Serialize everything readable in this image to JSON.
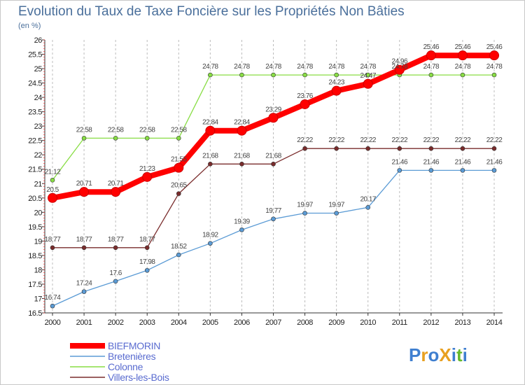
{
  "chart_data": {
    "type": "line",
    "title": "Evolution du Taux de Taxe Foncière sur les Propriétés Non Bâties",
    "subtitle": "(en %)",
    "xlabel": "",
    "ylabel": "",
    "x": [
      "2000",
      "2001",
      "2002",
      "2003",
      "2004",
      "2005",
      "2006",
      "2007",
      "2008",
      "2009",
      "2010",
      "2011",
      "2012",
      "2013",
      "2014"
    ],
    "ylim": [
      16.5,
      26
    ],
    "yticks": [
      "16.5",
      "17",
      "17.5",
      "18",
      "18.5",
      "19",
      "19.5",
      "20",
      "20.5",
      "21",
      "21.5",
      "22",
      "22.5",
      "23",
      "23.5",
      "24",
      "24.5",
      "25",
      "25.5",
      "26"
    ],
    "grid": "vertical dashed",
    "legend": "bottom-left",
    "series": [
      {
        "name": "BIEFMORIN",
        "color": "#ff0000",
        "values": [
          20.5,
          20.71,
          20.71,
          21.23,
          21.55,
          22.84,
          22.84,
          23.29,
          23.76,
          24.23,
          24.47,
          24.96,
          25.46,
          25.46,
          25.46
        ],
        "labels": [
          "20.5",
          "20.71",
          "20.71",
          "21.23",
          "21.55",
          "22.84",
          "22.84",
          "23.29",
          "23.76",
          "24.23",
          "24.47",
          "24.96",
          "25.46",
          "25.46",
          "25.46"
        ]
      },
      {
        "name": "Bretenières",
        "color": "#5b9bd5",
        "values": [
          16.74,
          17.24,
          17.6,
          17.98,
          18.52,
          18.92,
          19.39,
          19.77,
          19.97,
          19.97,
          20.17,
          21.46,
          21.46,
          21.46,
          21.46
        ],
        "labels": [
          "16.74",
          "17.24",
          "17.6",
          "17.98",
          "18.52",
          "18.92",
          "19.39",
          "19.77",
          "19.97",
          "19.97",
          "20.17",
          "21.46",
          "21.46",
          "21.46",
          "21.46"
        ]
      },
      {
        "name": "Colonne",
        "color": "#88dd44",
        "values": [
          21.12,
          22.58,
          22.58,
          22.58,
          22.58,
          24.78,
          24.78,
          24.78,
          24.78,
          24.78,
          24.78,
          24.78,
          24.78,
          24.78,
          24.78
        ],
        "labels": [
          "21.12",
          "22.58",
          "22.58",
          "22.58",
          "22.58",
          "24.78",
          "24.78",
          "24.78",
          "24.78",
          "24.78",
          "24.78",
          "24.78",
          "24.78",
          "24.78",
          "24.78"
        ]
      },
      {
        "name": "Villers-les-Bois",
        "color": "#7a2c2c",
        "values": [
          18.77,
          18.77,
          18.77,
          18.77,
          20.65,
          21.68,
          21.68,
          21.68,
          22.22,
          22.22,
          22.22,
          22.22,
          22.22,
          22.22,
          22.22
        ],
        "labels": [
          "18.77",
          "18.77",
          "18.77",
          "18.77",
          "20.65",
          "21.68",
          "21.68",
          "21.68",
          "22.22",
          "22.22",
          "22.22",
          "22.22",
          "22.22",
          "22.22",
          "22.22"
        ]
      }
    ]
  },
  "logo": {
    "text": "ProXiti",
    "colors": [
      "#3f7fd0",
      "#e8a020",
      "#3f7fd0",
      "#e8a020",
      "#3f7fd0",
      "#66b92c",
      "#3f7fd0"
    ]
  }
}
